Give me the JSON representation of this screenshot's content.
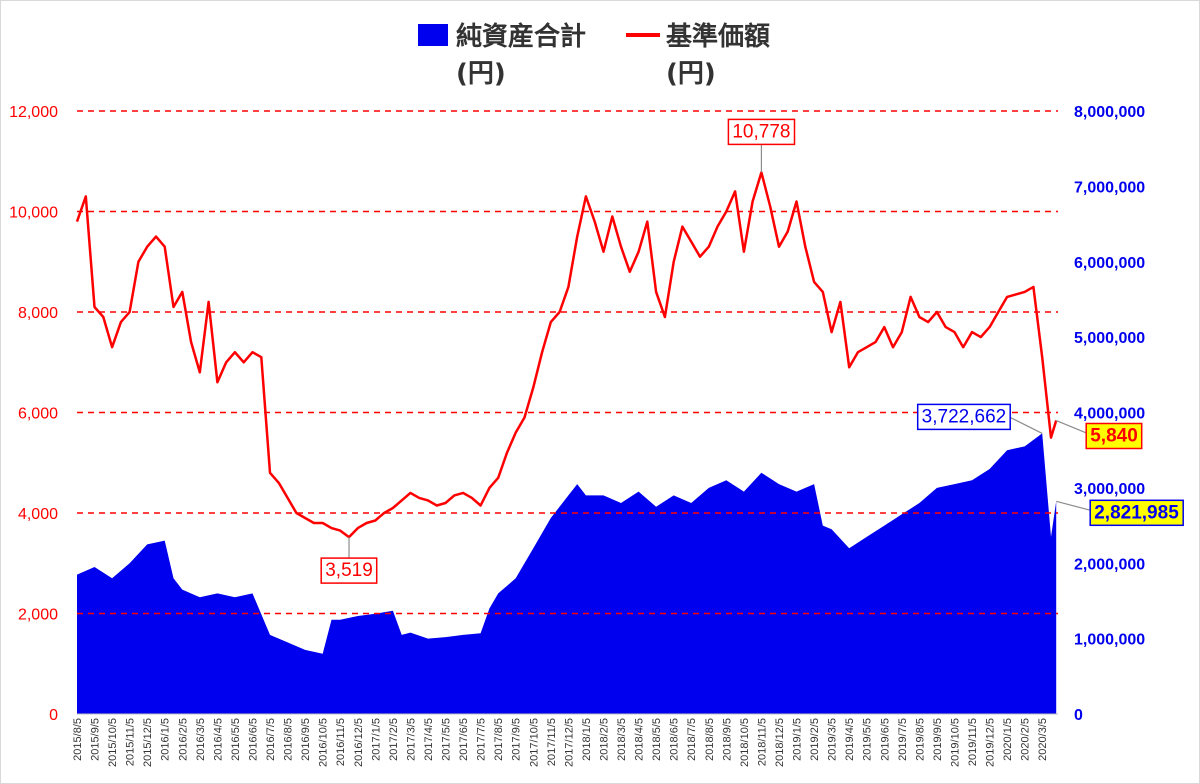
{
  "chart_data": {
    "type": "area+line",
    "legend": {
      "position": "top",
      "items": [
        {
          "label": "純資産合計",
          "unit": "(円)",
          "color": "#0000ee",
          "kind": "area"
        },
        {
          "label": "基準価額",
          "unit": "(円)",
          "color": "#ff0000",
          "kind": "line"
        }
      ]
    },
    "y_left": {
      "min": 0,
      "max": 12000,
      "ticks": [
        "0",
        "2,000",
        "4,000",
        "6,000",
        "8,000",
        "10,000",
        "12,000"
      ]
    },
    "y_right": {
      "min": 0,
      "max": 8000000,
      "ticks": [
        "0",
        "1,000,000",
        "2,000,000",
        "3,000,000",
        "4,000,000",
        "5,000,000",
        "6,000,000",
        "7,000,000",
        "8,000,000"
      ]
    },
    "grid": "dashed-horizontal",
    "x_labels": [
      "2015/8/5",
      "2015/9/5",
      "2015/10/5",
      "2015/11/5",
      "2015/12/5",
      "2016/1/5",
      "2016/2/5",
      "2016/3/5",
      "2016/4/5",
      "2016/5/5",
      "2016/6/5",
      "2016/7/5",
      "2016/8/5",
      "2016/9/5",
      "2016/10/5",
      "2016/11/5",
      "2016/12/5",
      "2017/1/5",
      "2017/2/5",
      "2017/3/5",
      "2017/4/5",
      "2017/5/5",
      "2017/6/5",
      "2017/7/5",
      "2017/8/5",
      "2017/9/5",
      "2017/10/5",
      "2017/11/5",
      "2017/12/5",
      "2018/1/5",
      "2018/2/5",
      "2018/3/5",
      "2018/4/5",
      "2018/5/5",
      "2018/6/5",
      "2018/7/5",
      "2018/8/5",
      "2018/9/5",
      "2018/10/5",
      "2018/11/5",
      "2018/12/5",
      "2019/1/5",
      "2019/2/5",
      "2019/3/5",
      "2019/4/5",
      "2019/5/5",
      "2019/6/5",
      "2019/7/5",
      "2019/8/5",
      "2019/9/5",
      "2019/10/5",
      "2019/11/5",
      "2019/12/5",
      "2020/1/5",
      "2020/2/5",
      "2020/3/5"
    ],
    "series": [
      {
        "name": "基準価額",
        "axis": "left",
        "points": [
          [
            0,
            9800
          ],
          [
            0.5,
            10300
          ],
          [
            1,
            8100
          ],
          [
            1.5,
            7900
          ],
          [
            2,
            7300
          ],
          [
            2.5,
            7800
          ],
          [
            3,
            8000
          ],
          [
            3.5,
            9000
          ],
          [
            4,
            9300
          ],
          [
            4.5,
            9500
          ],
          [
            5,
            9300
          ],
          [
            5.5,
            8100
          ],
          [
            6,
            8400
          ],
          [
            6.5,
            7400
          ],
          [
            7,
            6800
          ],
          [
            7.5,
            8200
          ],
          [
            8,
            6600
          ],
          [
            8.5,
            7000
          ],
          [
            9,
            7200
          ],
          [
            9.5,
            7000
          ],
          [
            10,
            7200
          ],
          [
            10.5,
            7100
          ],
          [
            11,
            4800
          ],
          [
            11.5,
            4600
          ],
          [
            12,
            4300
          ],
          [
            12.5,
            4000
          ],
          [
            13,
            3900
          ],
          [
            13.5,
            3800
          ],
          [
            14,
            3800
          ],
          [
            14.5,
            3700
          ],
          [
            15,
            3650
          ],
          [
            15.5,
            3520
          ],
          [
            16,
            3700
          ],
          [
            16.5,
            3800
          ],
          [
            17,
            3850
          ],
          [
            17.5,
            4000
          ],
          [
            18,
            4100
          ],
          [
            18.5,
            4250
          ],
          [
            19,
            4400
          ],
          [
            19.5,
            4300
          ],
          [
            20,
            4250
          ],
          [
            20.5,
            4150
          ],
          [
            21,
            4200
          ],
          [
            21.5,
            4350
          ],
          [
            22,
            4400
          ],
          [
            22.5,
            4300
          ],
          [
            23,
            4150
          ],
          [
            23.5,
            4500
          ],
          [
            24,
            4700
          ],
          [
            24.5,
            5200
          ],
          [
            25,
            5600
          ],
          [
            25.5,
            5900
          ],
          [
            26,
            6500
          ],
          [
            26.5,
            7200
          ],
          [
            27,
            7800
          ],
          [
            27.5,
            8000
          ],
          [
            28,
            8500
          ],
          [
            28.5,
            9500
          ],
          [
            29,
            10300
          ],
          [
            29.5,
            9800
          ],
          [
            30,
            9200
          ],
          [
            30.5,
            9900
          ],
          [
            31,
            9300
          ],
          [
            31.5,
            8800
          ],
          [
            32,
            9200
          ],
          [
            32.5,
            9800
          ],
          [
            33,
            8400
          ],
          [
            33.5,
            7900
          ],
          [
            34,
            9000
          ],
          [
            34.5,
            9700
          ],
          [
            35,
            9400
          ],
          [
            35.5,
            9100
          ],
          [
            36,
            9300
          ],
          [
            36.5,
            9700
          ],
          [
            37,
            10000
          ],
          [
            37.5,
            10400
          ],
          [
            38,
            9200
          ],
          [
            38.5,
            10200
          ],
          [
            39,
            10778
          ],
          [
            39.5,
            10100
          ],
          [
            40,
            9300
          ],
          [
            40.5,
            9600
          ],
          [
            41,
            10200
          ],
          [
            41.5,
            9300
          ],
          [
            42,
            8600
          ],
          [
            42.5,
            8400
          ],
          [
            43,
            7600
          ],
          [
            43.5,
            8200
          ],
          [
            44,
            6900
          ],
          [
            44.5,
            7200
          ],
          [
            45,
            7300
          ],
          [
            45.5,
            7400
          ],
          [
            46,
            7700
          ],
          [
            46.5,
            7300
          ],
          [
            47,
            7600
          ],
          [
            47.5,
            8300
          ],
          [
            48,
            7900
          ],
          [
            48.5,
            7800
          ],
          [
            49,
            8000
          ],
          [
            49.5,
            7700
          ],
          [
            50,
            7600
          ],
          [
            50.5,
            7300
          ],
          [
            51,
            7600
          ],
          [
            51.5,
            7500
          ],
          [
            52,
            7700
          ],
          [
            52.5,
            8000
          ],
          [
            53,
            8300
          ],
          [
            53.5,
            8350
          ],
          [
            54,
            8400
          ],
          [
            54.5,
            8500
          ],
          [
            55,
            7100
          ],
          [
            55.5,
            5500
          ],
          [
            55.8,
            5840
          ]
        ]
      },
      {
        "name": "純資産合計",
        "axis": "right",
        "points": [
          [
            0,
            1850000
          ],
          [
            1,
            1950000
          ],
          [
            2,
            1800000
          ],
          [
            3,
            2000000
          ],
          [
            4,
            2250000
          ],
          [
            5,
            2300000
          ],
          [
            5.5,
            1800000
          ],
          [
            6,
            1650000
          ],
          [
            7,
            1550000
          ],
          [
            8,
            1600000
          ],
          [
            9,
            1550000
          ],
          [
            10,
            1600000
          ],
          [
            11,
            1050000
          ],
          [
            12,
            950000
          ],
          [
            13,
            850000
          ],
          [
            14,
            800000
          ],
          [
            14.5,
            1250000
          ],
          [
            15,
            1250000
          ],
          [
            16,
            1300000
          ],
          [
            17,
            1330000
          ],
          [
            18,
            1370000
          ],
          [
            18.5,
            1050000
          ],
          [
            19,
            1080000
          ],
          [
            20,
            1000000
          ],
          [
            21,
            1020000
          ],
          [
            22,
            1050000
          ],
          [
            23,
            1070000
          ],
          [
            23.5,
            1400000
          ],
          [
            24,
            1600000
          ],
          [
            25,
            1800000
          ],
          [
            26,
            2200000
          ],
          [
            27,
            2600000
          ],
          [
            28,
            2900000
          ],
          [
            28.5,
            3050000
          ],
          [
            29,
            2900000
          ],
          [
            30,
            2900000
          ],
          [
            31,
            2800000
          ],
          [
            32,
            2950000
          ],
          [
            33,
            2750000
          ],
          [
            34,
            2900000
          ],
          [
            35,
            2800000
          ],
          [
            36,
            3000000
          ],
          [
            37,
            3100000
          ],
          [
            38,
            2950000
          ],
          [
            39,
            3200000
          ],
          [
            40,
            3050000
          ],
          [
            41,
            2950000
          ],
          [
            42,
            3050000
          ],
          [
            42.5,
            2500000
          ],
          [
            43,
            2450000
          ],
          [
            44,
            2200000
          ],
          [
            45,
            2350000
          ],
          [
            46,
            2500000
          ],
          [
            47,
            2650000
          ],
          [
            48,
            2800000
          ],
          [
            49,
            3000000
          ],
          [
            50,
            3050000
          ],
          [
            51,
            3100000
          ],
          [
            52,
            3250000
          ],
          [
            53,
            3500000
          ],
          [
            54,
            3550000
          ],
          [
            55,
            3722662
          ],
          [
            55.5,
            2350000
          ],
          [
            55.8,
            2821985
          ]
        ]
      }
    ],
    "annotations": [
      {
        "text": "10,778",
        "series": "基準価額",
        "x": 39,
        "y": 10778,
        "box": "red"
      },
      {
        "text": "3,519",
        "series": "基準価額",
        "x": 15.5,
        "y": 3520,
        "box": "red"
      },
      {
        "text": "5,840",
        "series": "基準価額",
        "x": 55.8,
        "y": 5840,
        "box": "red-yellow"
      },
      {
        "text": "3,722,662",
        "series": "純資産合計",
        "x": 55,
        "y": 3722662,
        "box": "blue"
      },
      {
        "text": "2,821,985",
        "series": "純資産合計",
        "x": 55.8,
        "y": 2821985,
        "box": "blue-yellow"
      }
    ]
  }
}
